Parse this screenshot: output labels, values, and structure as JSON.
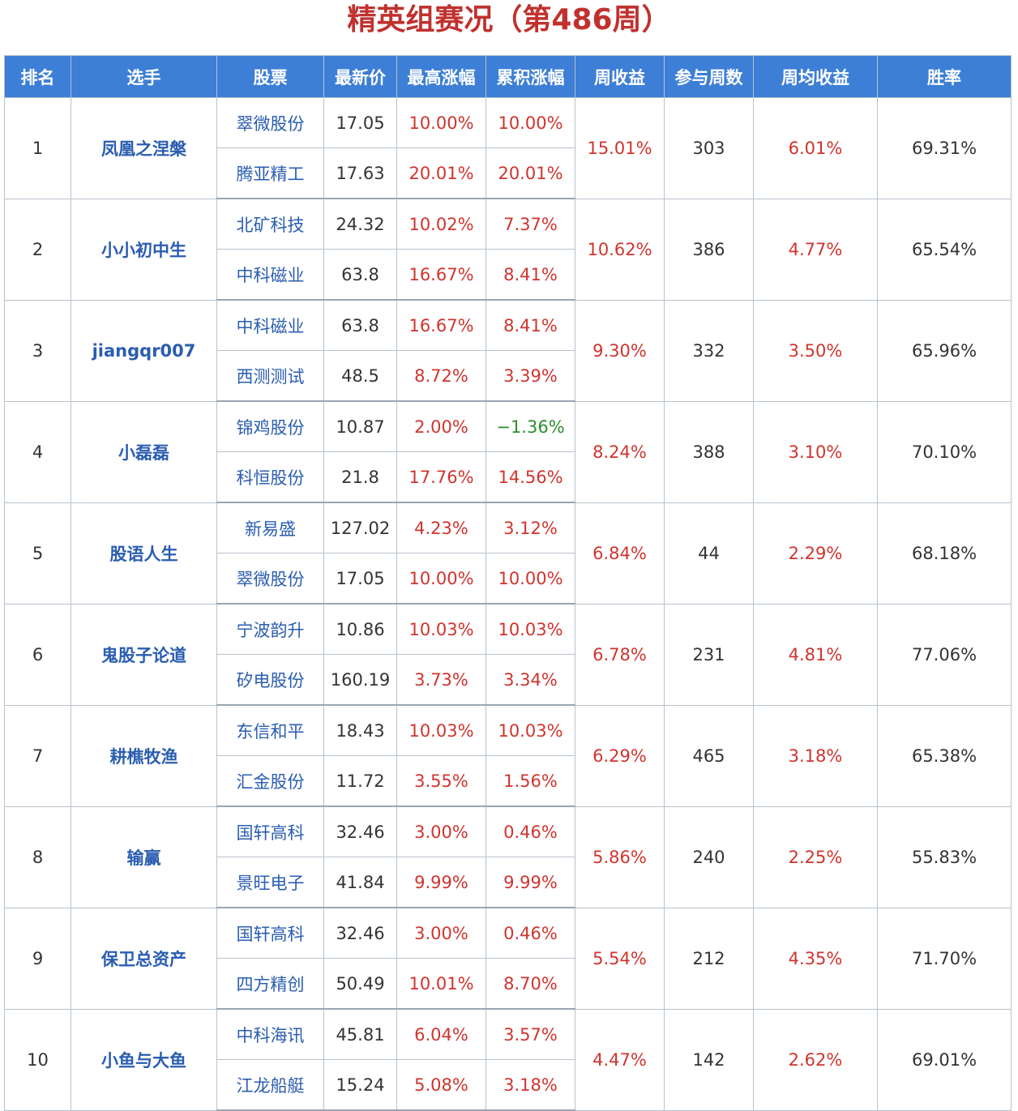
{
  "title": "精英组赛况（第486周）",
  "headers": [
    "排名",
    "选手",
    "股票",
    "最新价",
    "最高涨幅",
    "累积涨幅",
    "周收益",
    "参与周数",
    "周均收益",
    "胜率"
  ],
  "colors": {
    "header_bg": "#3d7fd6",
    "title": "#c0312e",
    "positive": "#d0342e",
    "negative": "#2e8b2e",
    "link": "#2a5db0"
  },
  "rows": [
    {
      "rank": "1",
      "player": "凤凰之涅槃",
      "weekly": "15.01%",
      "weeks": "303",
      "avg": "6.01%",
      "win": "69.31%",
      "stocks": [
        {
          "name": "翠微股份",
          "price": "17.05",
          "max": "10.00%",
          "cum": "10.00%",
          "cum_neg": false
        },
        {
          "name": "腾亚精工",
          "price": "17.63",
          "max": "20.01%",
          "cum": "20.01%",
          "cum_neg": false
        }
      ]
    },
    {
      "rank": "2",
      "player": "小小初中生",
      "weekly": "10.62%",
      "weeks": "386",
      "avg": "4.77%",
      "win": "65.54%",
      "stocks": [
        {
          "name": "北矿科技",
          "price": "24.32",
          "max": "10.02%",
          "cum": "7.37%",
          "cum_neg": false
        },
        {
          "name": "中科磁业",
          "price": "63.8",
          "max": "16.67%",
          "cum": "8.41%",
          "cum_neg": false
        }
      ]
    },
    {
      "rank": "3",
      "player": "jiangqr007",
      "weekly": "9.30%",
      "weeks": "332",
      "avg": "3.50%",
      "win": "65.96%",
      "stocks": [
        {
          "name": "中科磁业",
          "price": "63.8",
          "max": "16.67%",
          "cum": "8.41%",
          "cum_neg": false
        },
        {
          "name": "西测测试",
          "price": "48.5",
          "max": "8.72%",
          "cum": "3.39%",
          "cum_neg": false
        }
      ]
    },
    {
      "rank": "4",
      "player": "小磊磊",
      "weekly": "8.24%",
      "weeks": "388",
      "avg": "3.10%",
      "win": "70.10%",
      "stocks": [
        {
          "name": "锦鸡股份",
          "price": "10.87",
          "max": "2.00%",
          "cum": "−1.36%",
          "cum_neg": true
        },
        {
          "name": "科恒股份",
          "price": "21.8",
          "max": "17.76%",
          "cum": "14.56%",
          "cum_neg": false
        }
      ]
    },
    {
      "rank": "5",
      "player": "股语人生",
      "weekly": "6.84%",
      "weeks": "44",
      "avg": "2.29%",
      "win": "68.18%",
      "stocks": [
        {
          "name": "新易盛",
          "price": "127.02",
          "max": "4.23%",
          "cum": "3.12%",
          "cum_neg": false
        },
        {
          "name": "翠微股份",
          "price": "17.05",
          "max": "10.00%",
          "cum": "10.00%",
          "cum_neg": false
        }
      ]
    },
    {
      "rank": "6",
      "player": "鬼股子论道",
      "weekly": "6.78%",
      "weeks": "231",
      "avg": "4.81%",
      "win": "77.06%",
      "stocks": [
        {
          "name": "宁波韵升",
          "price": "10.86",
          "max": "10.03%",
          "cum": "10.03%",
          "cum_neg": false
        },
        {
          "name": "矽电股份",
          "price": "160.19",
          "max": "3.73%",
          "cum": "3.34%",
          "cum_neg": false
        }
      ]
    },
    {
      "rank": "7",
      "player": "耕樵牧渔",
      "weekly": "6.29%",
      "weeks": "465",
      "avg": "3.18%",
      "win": "65.38%",
      "stocks": [
        {
          "name": "东信和平",
          "price": "18.43",
          "max": "10.03%",
          "cum": "10.03%",
          "cum_neg": false
        },
        {
          "name": "汇金股份",
          "price": "11.72",
          "max": "3.55%",
          "cum": "1.56%",
          "cum_neg": false
        }
      ]
    },
    {
      "rank": "8",
      "player": "输赢",
      "weekly": "5.86%",
      "weeks": "240",
      "avg": "2.25%",
      "win": "55.83%",
      "stocks": [
        {
          "name": "国轩高科",
          "price": "32.46",
          "max": "3.00%",
          "cum": "0.46%",
          "cum_neg": false
        },
        {
          "name": "景旺电子",
          "price": "41.84",
          "max": "9.99%",
          "cum": "9.99%",
          "cum_neg": false
        }
      ]
    },
    {
      "rank": "9",
      "player": "保卫总资产",
      "weekly": "5.54%",
      "weeks": "212",
      "avg": "4.35%",
      "win": "71.70%",
      "stocks": [
        {
          "name": "国轩高科",
          "price": "32.46",
          "max": "3.00%",
          "cum": "0.46%",
          "cum_neg": false
        },
        {
          "name": "四方精创",
          "price": "50.49",
          "max": "10.01%",
          "cum": "8.70%",
          "cum_neg": false
        }
      ]
    },
    {
      "rank": "10",
      "player": "小鱼与大鱼",
      "weekly": "4.47%",
      "weeks": "142",
      "avg": "2.62%",
      "win": "69.01%",
      "stocks": [
        {
          "name": "中科海讯",
          "price": "45.81",
          "max": "6.04%",
          "cum": "3.57%",
          "cum_neg": false
        },
        {
          "name": "江龙船艇",
          "price": "15.24",
          "max": "5.08%",
          "cum": "3.18%",
          "cum_neg": false
        }
      ]
    }
  ]
}
